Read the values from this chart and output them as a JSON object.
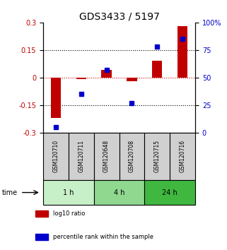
{
  "title": "GDS3433 / 5197",
  "samples": [
    "GSM120710",
    "GSM120711",
    "GSM120648",
    "GSM120708",
    "GSM120715",
    "GSM120716"
  ],
  "log10_ratio": [
    -0.22,
    -0.01,
    0.04,
    -0.02,
    0.09,
    0.28
  ],
  "percentile_rank": [
    5,
    35,
    57,
    27,
    78,
    85
  ],
  "ylim_left": [
    -0.3,
    0.3
  ],
  "ylim_right": [
    0,
    100
  ],
  "yticks_left": [
    -0.3,
    -0.15,
    0,
    0.15,
    0.3
  ],
  "yticks_right": [
    0,
    25,
    50,
    75,
    100
  ],
  "bar_color": "#c00000",
  "dot_color": "#0000cc",
  "zero_line_color": "#cc0000",
  "title_fontsize": 10,
  "tick_fontsize": 7,
  "sample_fontsize": 5.5,
  "time_fontsize": 7,
  "legend_fontsize": 6,
  "bar_width": 0.4,
  "dot_size": 4,
  "group_positions": [
    [
      0,
      1,
      "1 h",
      "#c8f0c8"
    ],
    [
      2,
      3,
      "4 h",
      "#90d890"
    ],
    [
      4,
      5,
      "24 h",
      "#40b840"
    ]
  ],
  "sample_box_color": "#d0d0d0"
}
